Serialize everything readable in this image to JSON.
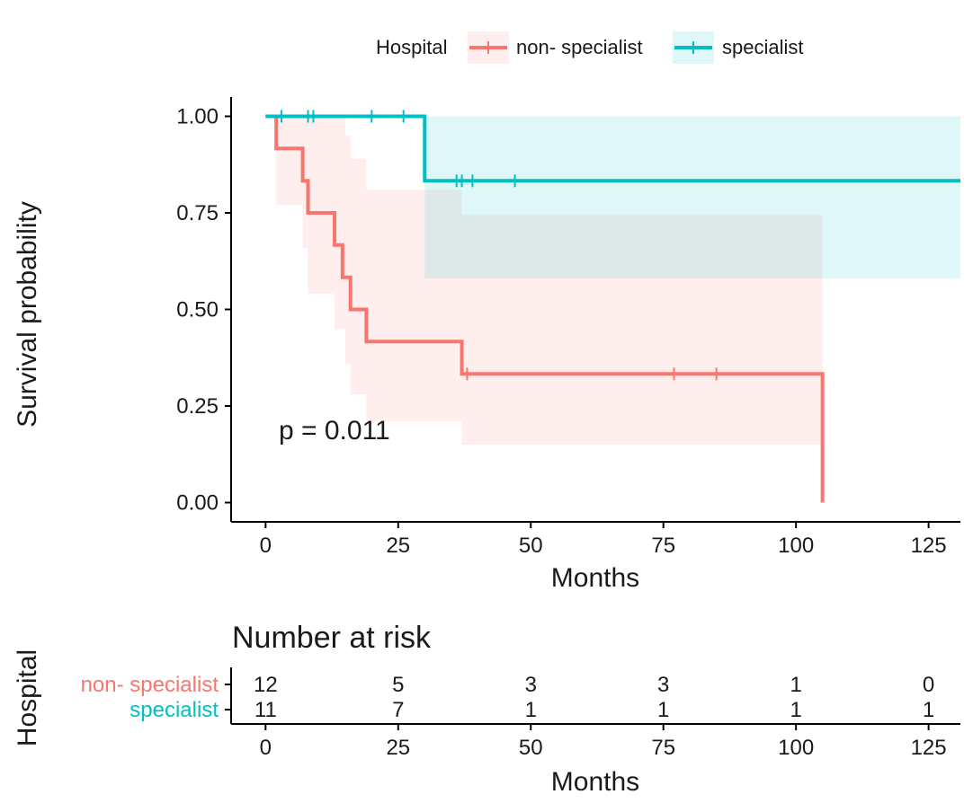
{
  "colors": {
    "non_specialist": "#F8766D",
    "specialist": "#00BFC4"
  },
  "legend": {
    "title": "Hospital",
    "items": [
      "non- specialist",
      "specialist"
    ]
  },
  "chart_data": [
    {
      "type": "line",
      "subtype": "kaplan-meier",
      "title": "",
      "xlabel": "Months",
      "ylabel": "Survival probability",
      "xlim": [
        -6.5,
        131
      ],
      "ylim": [
        -0.05,
        1.05
      ],
      "x_ticks": [
        0,
        25,
        50,
        75,
        100,
        125
      ],
      "y_ticks": [
        0.0,
        0.25,
        0.5,
        0.75,
        1.0
      ],
      "y_tick_labels": [
        "0.00",
        "0.25",
        "0.50",
        "0.75",
        "1.00"
      ],
      "legend_position": "top",
      "annotation": "p = 0.011",
      "annotation_pos": [
        3,
        0.2
      ],
      "series": [
        {
          "name": "non- specialist",
          "color_key": "non_specialist",
          "steps": [
            [
              0,
              1.0
            ],
            [
              2,
              0.917
            ],
            [
              7,
              0.833
            ],
            [
              8,
              0.75
            ],
            [
              13,
              0.667
            ],
            [
              14.5,
              0.583
            ],
            [
              16,
              0.5
            ],
            [
              19,
              0.417
            ],
            [
              37,
              0.333
            ],
            [
              105,
              0.0
            ]
          ],
          "end_x": 105,
          "censor": [
            [
              38,
              0.333
            ],
            [
              77,
              0.333
            ],
            [
              85,
              0.333
            ]
          ],
          "ci": [
            [
              0,
              1.0,
              1.0
            ],
            [
              2,
              0.77,
              1.0
            ],
            [
              7,
              0.66,
              1.0
            ],
            [
              8,
              0.54,
              1.0
            ],
            [
              13,
              0.45,
              1.0
            ],
            [
              15,
              0.36,
              0.95
            ],
            [
              16,
              0.28,
              0.89
            ],
            [
              19,
              0.21,
              0.81
            ],
            [
              37,
              0.15,
              0.745
            ],
            [
              105,
              0.15,
              0.745
            ]
          ]
        },
        {
          "name": "specialist",
          "color_key": "specialist",
          "steps": [
            [
              0,
              1.0
            ],
            [
              30,
              0.833
            ]
          ],
          "end_x": 131,
          "censor": [
            [
              3,
              1.0
            ],
            [
              8,
              1.0
            ],
            [
              9,
              1.0
            ],
            [
              20,
              1.0
            ],
            [
              26,
              1.0
            ],
            [
              36,
              0.833
            ],
            [
              37,
              0.833
            ],
            [
              39,
              0.833
            ],
            [
              47,
              0.833
            ]
          ],
          "ci": [
            [
              0,
              1.0,
              1.0
            ],
            [
              30,
              0.58,
              1.0
            ],
            [
              131,
              0.58,
              1.0
            ]
          ]
        }
      ]
    },
    {
      "type": "table",
      "title": "Number at risk",
      "xlabel": "Months",
      "ylabel": "Hospital",
      "xlim": [
        -6.5,
        131
      ],
      "x_ticks": [
        0,
        25,
        50,
        75,
        100,
        125
      ],
      "rows": [
        {
          "name": "non- specialist",
          "color_key": "non_specialist",
          "values": [
            12,
            5,
            3,
            3,
            1,
            0
          ]
        },
        {
          "name": "specialist",
          "color_key": "specialist",
          "values": [
            11,
            7,
            1,
            1,
            1,
            1
          ]
        }
      ]
    }
  ]
}
